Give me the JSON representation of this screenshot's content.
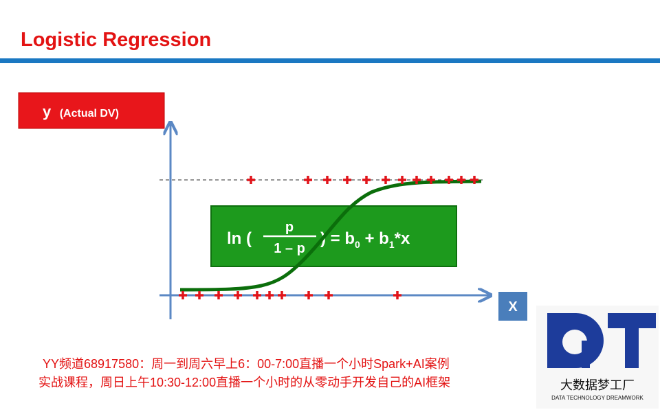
{
  "header": {
    "title": "Logistic Regression"
  },
  "diagram": {
    "y_label": "y",
    "y_label_note": "(Actual DV)",
    "x_label": "X",
    "formula": {
      "ln": "ln (",
      "numerator": "p",
      "denominator": "1 – p",
      "close_b": ") = b",
      "sub0": "0",
      "plus_b": " + b",
      "sub1": "1",
      "times_x": "*x"
    }
  },
  "footer": {
    "lines": [
      "YY频道68917580：周一到周六早上6：00-7:00直播一个小时Spark+AI案例",
      "实战课程，周日上午10:30-12:00直播一个小时的从零动手开发自己的AI框架"
    ]
  },
  "logo": {
    "name": "大数据梦工厂",
    "tagline": "DATA TECHNOLOGY DREAMWORK"
  }
}
